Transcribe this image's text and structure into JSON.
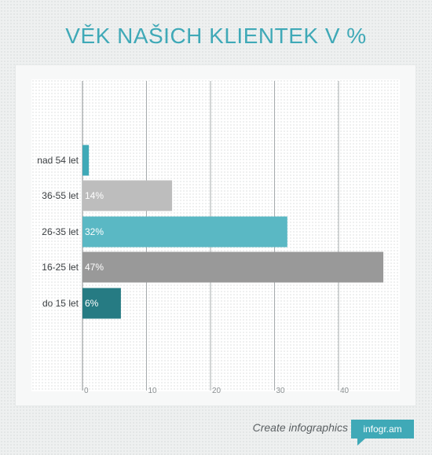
{
  "title": "VĚK NAŠICH KLIENTEK V %",
  "chart_data": {
    "type": "bar",
    "orientation": "horizontal",
    "categories": [
      "nad 54 let",
      "36-55 let",
      "26-35 let",
      "16-25 let",
      "do 15 let"
    ],
    "values": [
      1,
      14,
      32,
      47,
      6
    ],
    "value_labels": [
      "",
      "14%",
      "32%",
      "47%",
      "6%"
    ],
    "bar_colors": [
      "#3fa9b7",
      "#bdbdbd",
      "#5ab8c4",
      "#999999",
      "#267b83"
    ],
    "xticks": [
      "0",
      "10",
      "20",
      "30",
      "40"
    ],
    "xlim": [
      0,
      50
    ],
    "grid": true
  },
  "footer": {
    "text": "Create infographics",
    "badge": "infogr.am"
  }
}
